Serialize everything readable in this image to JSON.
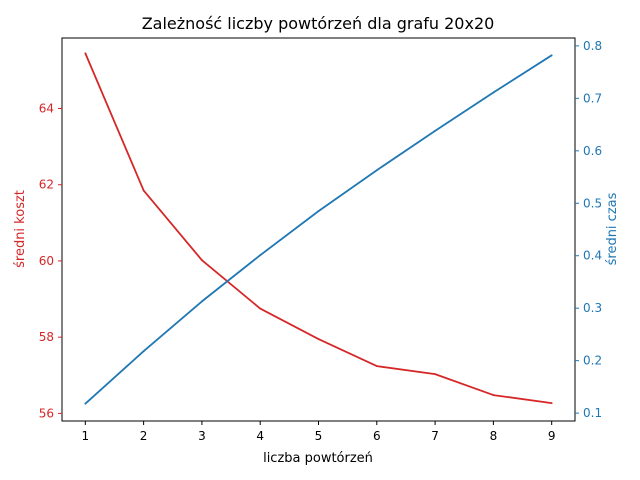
{
  "chart_data": {
    "type": "line",
    "title": "Zależność liczby powtórzeń dla grafu 20x20",
    "xlabel": "liczba powtórzeń",
    "ylabel_left": "średni koszt",
    "ylabel_right": "średni czas",
    "x": [
      1,
      2,
      3,
      4,
      5,
      6,
      7,
      8,
      9
    ],
    "xlim": [
      0.6,
      9.4
    ],
    "ylim_left": [
      55.8,
      65.85
    ],
    "ylim_right": [
      0.085,
      0.815
    ],
    "x_ticks": [
      "1",
      "2",
      "3",
      "4",
      "5",
      "6",
      "7",
      "8",
      "9"
    ],
    "y_left_ticks": [
      "56",
      "58",
      "60",
      "62",
      "64"
    ],
    "y_right_ticks": [
      "0.1",
      "0.2",
      "0.3",
      "0.4",
      "0.5",
      "0.6",
      "0.7",
      "0.8"
    ],
    "grid": false,
    "legend": "none",
    "series": [
      {
        "axis": "left",
        "color": "#d62728",
        "values": [
          65.45,
          61.85,
          60.02,
          58.75,
          57.95,
          57.24,
          57.03,
          56.48,
          56.27
        ]
      },
      {
        "axis": "right",
        "color": "#1f77b4",
        "values": [
          0.118,
          0.218,
          0.313,
          0.401,
          0.485,
          0.563,
          0.638,
          0.711,
          0.782
        ]
      }
    ]
  }
}
